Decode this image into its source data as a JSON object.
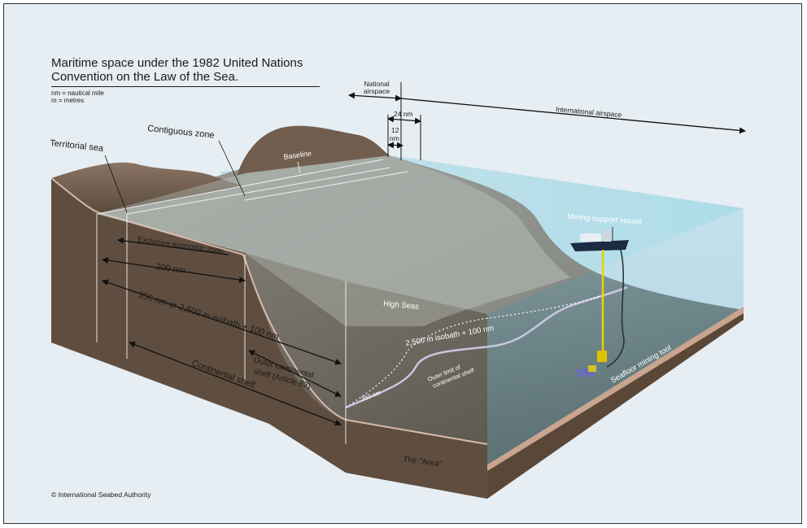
{
  "title": "Maritime space under the 1982 United Nations Convention on the Law of the Sea.",
  "legend": [
    "nm = nautical mile",
    "m = metres"
  ],
  "copyright": "© International Seabed Authority",
  "labels": {
    "national_airspace_1": "National",
    "national_airspace_2": "airspace",
    "international_airspace": "International airspace",
    "nm24": "24 nm",
    "nm12_1": "12",
    "nm12_2": "nm",
    "contiguous_zone": "Contiguous zone",
    "territorial_sea": "Territorial sea",
    "baseline": "Baseline",
    "mining_support_vessel": "Mining support vessel",
    "eez": "Exclusive economic zone",
    "nm200": "200 nm",
    "nm350": "350 nm or 2,500 m isobath + 100 nm",
    "high_seas": "High Seas",
    "isobath": "2,500 m isobath + 100 nm",
    "outer_limit_1": "Outer limit of",
    "outer_limit_2": "continental shelf",
    "outer_shelf_1": "Outer continental",
    "outer_shelf_2": "shelf (Article 82)",
    "continental_shelf": "Continental shelf",
    "nm350_short": "350 nm",
    "the_area": "The \"Area\"",
    "seafloor_tool": "Seafloor mining tool"
  },
  "colors": {
    "background": "#e6eef3",
    "water": "#8dcfe0",
    "land": "#6e5a4a",
    "seafloor": "#5f574c",
    "cross_section": "#6a5848",
    "shelf_line": "#d8b8a8"
  }
}
